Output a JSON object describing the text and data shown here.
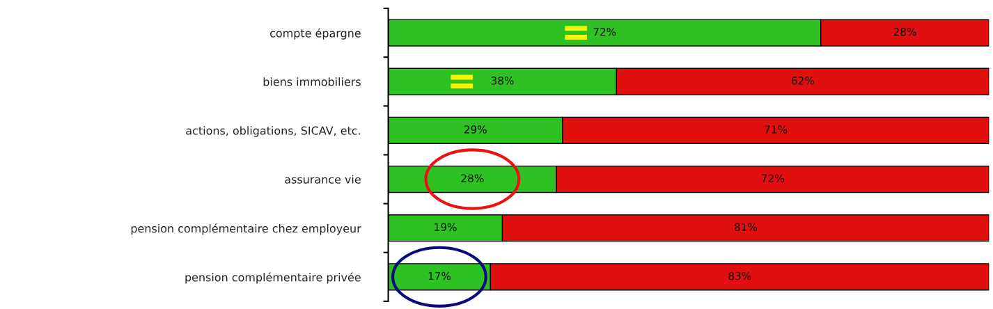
{
  "chart_data": {
    "type": "bar",
    "orientation": "horizontal",
    "stacked": true,
    "categories": [
      "compte épargne",
      "biens immobiliers",
      "actions, obligations, SICAV, etc.",
      "assurance vie",
      "pension complémentaire chez employeur",
      "pension complémentaire privée"
    ],
    "series": [
      {
        "color": "#2dc122",
        "values": [
          72,
          38,
          29,
          28,
          19,
          17
        ],
        "value_labels": [
          "72%",
          "38%",
          "29%",
          "28%",
          "19%",
          "17%"
        ]
      },
      {
        "color": "#e0100e",
        "values": [
          28,
          62,
          71,
          72,
          81,
          83
        ],
        "value_labels": [
          "28%",
          "62%",
          "71%",
          "72%",
          "81%",
          "83%"
        ]
      }
    ],
    "xlim": [
      0,
      100
    ],
    "tick_labels": "y"
  }
}
